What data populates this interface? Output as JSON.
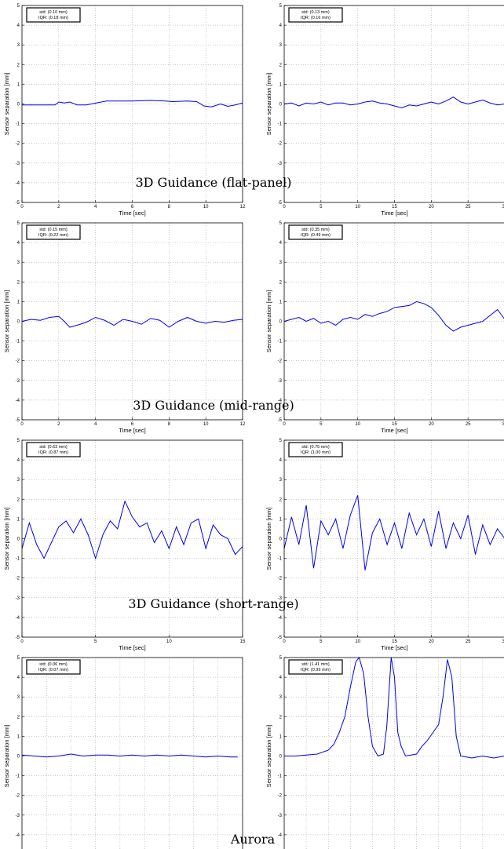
{
  "colors": {
    "line": "#0000ee",
    "grid": "#999999",
    "axis": "#000000"
  },
  "captions": [
    "3D Guidance (flat-panel)",
    "3D Guidance (mid-range)",
    "3D Guidance (short-range)",
    "Aurora"
  ],
  "chart_data": [
    {
      "type": "line",
      "id": "flat-left",
      "row": 0,
      "col": 0,
      "ylabel": "Sensor separation [mm]",
      "xlabel": "Time [sec]",
      "xlim": [
        0,
        12
      ],
      "ylim": [
        -5,
        5
      ],
      "xticks": [
        0,
        2,
        4,
        6,
        8,
        10,
        12
      ],
      "yticks": [
        -5,
        -4,
        -3,
        -2,
        -1,
        0,
        1,
        2,
        3,
        4,
        5
      ],
      "grid": true,
      "stats": [
        "std: (0.10 mm)",
        "IQR: (0.18 mm)"
      ],
      "series": [
        {
          "x": [
            0,
            1,
            1.8,
            2.0,
            2.3,
            2.6,
            3.0,
            3.5,
            4.2,
            4.6,
            5.0,
            6.0,
            7.0,
            7.8,
            8.2,
            9.0,
            9.5,
            9.9,
            10.3,
            10.8,
            11.2,
            11.6,
            12.0
          ],
          "y": [
            -0.05,
            -0.05,
            -0.05,
            0.1,
            0.05,
            0.1,
            -0.05,
            -0.05,
            0.08,
            0.15,
            0.15,
            0.15,
            0.18,
            0.15,
            0.12,
            0.15,
            0.12,
            -0.1,
            -0.15,
            0.0,
            -0.12,
            -0.05,
            0.05
          ]
        }
      ]
    },
    {
      "type": "line",
      "id": "flat-right",
      "row": 0,
      "col": 1,
      "ylabel": "Sensor separation [mm]",
      "xlabel": "Time [sec]",
      "xlim": [
        0,
        30
      ],
      "ylim": [
        -5,
        5
      ],
      "xticks": [
        0,
        5,
        10,
        15,
        20,
        25,
        30
      ],
      "yticks": [
        -5,
        -4,
        -3,
        -2,
        -1,
        0,
        1,
        2,
        3,
        4,
        5
      ],
      "grid": true,
      "stats": [
        "std: (0.13 mm)",
        "IQR: (0.16 mm)"
      ],
      "series": [
        {
          "x": [
            0,
            1,
            2,
            3,
            4,
            5,
            6,
            7,
            8,
            9,
            10,
            11,
            12,
            13,
            14,
            15,
            16,
            17,
            18,
            19,
            20,
            21,
            22,
            23,
            24,
            25,
            26,
            27,
            28,
            29,
            30
          ],
          "y": [
            0.0,
            0.05,
            -0.1,
            0.05,
            0.0,
            0.1,
            -0.05,
            0.05,
            0.05,
            -0.05,
            0.0,
            0.1,
            0.15,
            0.05,
            0.0,
            -0.1,
            -0.2,
            -0.05,
            -0.1,
            0.0,
            0.1,
            0.0,
            0.15,
            0.35,
            0.1,
            0.0,
            0.1,
            0.2,
            0.05,
            -0.05,
            0.0
          ]
        }
      ]
    },
    {
      "type": "line",
      "id": "mid-left",
      "row": 1,
      "col": 0,
      "ylabel": "Sensor separation [mm]",
      "xlabel": "Time [sec]",
      "xlim": [
        0,
        12
      ],
      "ylim": [
        -5,
        5
      ],
      "xticks": [
        0,
        2,
        4,
        6,
        8,
        10,
        12
      ],
      "yticks": [
        -5,
        -4,
        -3,
        -2,
        -1,
        0,
        1,
        2,
        3,
        4,
        5
      ],
      "grid": true,
      "stats": [
        "std: (0.15 mm)",
        "IQR: (0.22 mm)"
      ],
      "series": [
        {
          "x": [
            0,
            0.5,
            1.0,
            1.5,
            2.0,
            2.3,
            2.6,
            3.0,
            3.5,
            4.0,
            4.5,
            5.0,
            5.5,
            6.0,
            6.5,
            7.0,
            7.5,
            8.0,
            8.5,
            9.0,
            9.5,
            10.0,
            10.5,
            11.0,
            11.5,
            12.0
          ],
          "y": [
            0.0,
            0.1,
            0.05,
            0.2,
            0.25,
            0.0,
            -0.3,
            -0.2,
            -0.05,
            0.2,
            0.05,
            -0.2,
            0.1,
            0.0,
            -0.15,
            0.15,
            0.05,
            -0.3,
            0.0,
            0.2,
            0.0,
            -0.1,
            0.0,
            -0.05,
            0.05,
            0.1
          ]
        }
      ]
    },
    {
      "type": "line",
      "id": "mid-right",
      "row": 1,
      "col": 1,
      "ylabel": "Sensor separation [mm]",
      "xlabel": "Time [sec]",
      "xlim": [
        0,
        30
      ],
      "ylim": [
        -5,
        5
      ],
      "xticks": [
        0,
        5,
        10,
        15,
        20,
        25,
        30
      ],
      "yticks": [
        -5,
        -4,
        -3,
        -2,
        -1,
        0,
        1,
        2,
        3,
        4,
        5
      ],
      "grid": true,
      "stats": [
        "std: (0.35 mm)",
        "IQR: (0.49 mm)"
      ],
      "series": [
        {
          "x": [
            0,
            1,
            2,
            3,
            4,
            5,
            6,
            7,
            8,
            9,
            10,
            11,
            12,
            13,
            14,
            15,
            16,
            17,
            18,
            19,
            20,
            21,
            22,
            23,
            24,
            25,
            26,
            27,
            28,
            29,
            30
          ],
          "y": [
            0.0,
            0.1,
            0.2,
            0.0,
            0.15,
            -0.1,
            0.0,
            -0.2,
            0.1,
            0.2,
            0.1,
            0.35,
            0.25,
            0.4,
            0.5,
            0.7,
            0.75,
            0.8,
            1.0,
            0.9,
            0.7,
            0.3,
            -0.2,
            -0.5,
            -0.3,
            -0.2,
            -0.1,
            0.0,
            0.3,
            0.6,
            0.1
          ]
        }
      ]
    },
    {
      "type": "line",
      "id": "short-left",
      "row": 2,
      "col": 0,
      "ylabel": "Sensor separation [mm]",
      "xlabel": "Time [sec]",
      "xlim": [
        0,
        15
      ],
      "ylim": [
        -5,
        5
      ],
      "xticks": [
        0,
        5,
        10,
        15
      ],
      "yticks": [
        -5,
        -4,
        -3,
        -2,
        -1,
        0,
        1,
        2,
        3,
        4,
        5
      ],
      "grid": true,
      "stats": [
        "std: (0.63 mm)",
        "IQR: (0.87 mm)"
      ],
      "series": [
        {
          "x": [
            0,
            0.5,
            1.0,
            1.5,
            2.0,
            2.5,
            3.0,
            3.5,
            4.0,
            4.5,
            5.0,
            5.5,
            6.0,
            6.5,
            7.0,
            7.5,
            8.0,
            8.5,
            9.0,
            9.5,
            10.0,
            10.5,
            11.0,
            11.5,
            12.0,
            12.5,
            13.0,
            13.5,
            14.0,
            14.5,
            15.0
          ],
          "y": [
            -0.5,
            0.8,
            -0.3,
            -1.0,
            -0.2,
            0.6,
            0.9,
            0.3,
            1.0,
            0.2,
            -1.0,
            0.2,
            0.9,
            0.5,
            1.9,
            1.1,
            0.6,
            0.8,
            -0.2,
            0.4,
            -0.5,
            0.6,
            -0.3,
            0.8,
            1.0,
            -0.5,
            0.7,
            0.2,
            0.0,
            -0.8,
            -0.4
          ]
        }
      ]
    },
    {
      "type": "line",
      "id": "short-right",
      "row": 2,
      "col": 1,
      "ylabel": "Sensor separation [mm]",
      "xlabel": "Time [sec]",
      "xlim": [
        0,
        30
      ],
      "ylim": [
        -5,
        5
      ],
      "xticks": [
        0,
        5,
        10,
        15,
        20,
        25,
        30
      ],
      "yticks": [
        -5,
        -4,
        -3,
        -2,
        -1,
        0,
        1,
        2,
        3,
        4,
        5
      ],
      "grid": true,
      "stats": [
        "std: (0.75 mm)",
        "IQR: (1.00 mm)"
      ],
      "series": [
        {
          "x": [
            0,
            1,
            2,
            3,
            4,
            5,
            6,
            7,
            8,
            9,
            10,
            11,
            12,
            13,
            14,
            15,
            16,
            17,
            18,
            19,
            20,
            21,
            22,
            23,
            24,
            25,
            26,
            27,
            28,
            29,
            30
          ],
          "y": [
            -0.5,
            1.1,
            -0.3,
            1.7,
            -1.5,
            0.9,
            0.2,
            1.0,
            -0.5,
            1.2,
            2.2,
            -1.6,
            0.3,
            1.0,
            -0.3,
            0.8,
            -0.5,
            1.3,
            0.2,
            1.0,
            -0.4,
            1.4,
            -0.5,
            0.8,
            0.0,
            1.2,
            -0.8,
            0.7,
            -0.3,
            0.5,
            0.0
          ]
        }
      ]
    },
    {
      "type": "line",
      "id": "aurora-left",
      "row": 3,
      "col": 0,
      "ylabel": "Sensor separation [mm]",
      "xlabel": "Time [sec]",
      "xlim": [
        0,
        9
      ],
      "ylim": [
        -5,
        5
      ],
      "xticks": [
        0,
        1,
        2,
        3,
        4,
        5,
        6,
        7,
        8,
        9
      ],
      "yticks": [
        -5,
        -4,
        -3,
        -2,
        -1,
        0,
        1,
        2,
        3,
        4,
        5
      ],
      "grid": true,
      "stats": [
        "std: (0.06 mm)",
        "IQR: (0.07 mm)"
      ],
      "series": [
        {
          "x": [
            0,
            0.5,
            1.0,
            1.5,
            2.0,
            2.5,
            3.0,
            3.5,
            4.0,
            4.5,
            5.0,
            5.5,
            6.0,
            6.5,
            7.0,
            7.5,
            8.0,
            8.5,
            8.8
          ],
          "y": [
            0.05,
            0.0,
            -0.05,
            0.0,
            0.1,
            0.0,
            0.05,
            0.05,
            0.0,
            0.05,
            0.0,
            0.05,
            0.0,
            0.05,
            0.0,
            -0.05,
            0.0,
            -0.05,
            -0.05
          ]
        }
      ]
    },
    {
      "type": "line",
      "id": "aurora-right",
      "row": 3,
      "col": 1,
      "ylabel": "Sensor separation [mm]",
      "xlabel": "Time [sec]",
      "xlim": [
        0,
        20
      ],
      "ylim": [
        -5,
        5
      ],
      "xticks": [
        0,
        2,
        4,
        6,
        8,
        10,
        12,
        14,
        16,
        18,
        20
      ],
      "yticks": [
        -5,
        -4,
        -3,
        -2,
        -1,
        0,
        1,
        2,
        3,
        4,
        5
      ],
      "grid": true,
      "stats": [
        "std: (1.41 mm)",
        "IQR: (0.99 mm)"
      ],
      "series": [
        {
          "x": [
            0,
            1,
            2,
            3,
            4,
            4.5,
            5,
            5.5,
            6,
            6.5,
            6.8,
            7.2,
            7.6,
            8,
            8.5,
            9,
            9.3,
            9.7,
            10.0,
            10.3,
            10.6,
            11,
            11.5,
            12,
            12.5,
            13,
            13.5,
            14,
            14.4,
            14.8,
            15.2,
            15.6,
            16,
            17,
            18,
            19,
            20
          ],
          "y": [
            0.0,
            0.0,
            0.05,
            0.1,
            0.3,
            0.6,
            1.2,
            2.0,
            3.5,
            4.8,
            5.0,
            4.2,
            2.0,
            0.5,
            0.0,
            0.1,
            1.5,
            5.0,
            4.0,
            1.2,
            0.5,
            0.0,
            0.05,
            0.1,
            0.5,
            0.8,
            1.2,
            1.6,
            3.0,
            4.9,
            4.0,
            1.0,
            0.0,
            -0.1,
            0.0,
            -0.1,
            0.0
          ]
        }
      ]
    }
  ]
}
